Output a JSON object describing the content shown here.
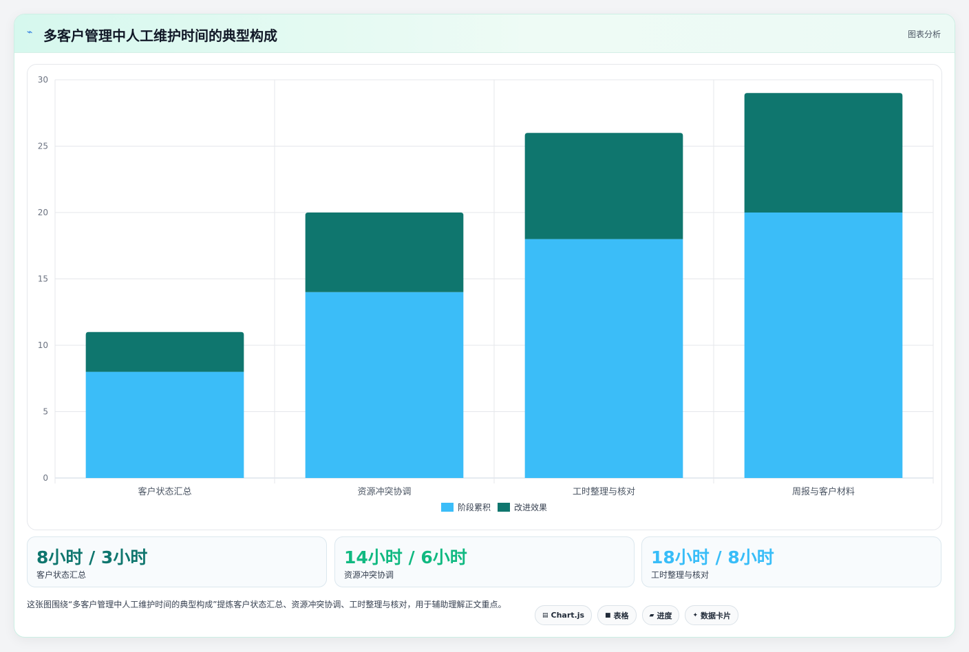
{
  "header": {
    "title": "多客户管理中人工维护时间的典型构成",
    "tag": "图表分析"
  },
  "chart_data": {
    "type": "bar",
    "stacked": true,
    "categories": [
      "客户状态汇总",
      "资源冲突协调",
      "工时整理与核对",
      "周报与客户材料"
    ],
    "series": [
      {
        "name": "阶段累积",
        "values": [
          8,
          14,
          18,
          20
        ],
        "color": "#3bbdf8"
      },
      {
        "name": "改进效果",
        "values": [
          3,
          6,
          8,
          9
        ],
        "color": "#0f766e"
      }
    ],
    "ylim": [
      0,
      30
    ],
    "yticks": [
      0,
      5,
      10,
      15,
      20,
      25,
      30
    ],
    "grid": true,
    "legend": "bottom"
  },
  "stats": [
    {
      "value": "8小时 / 3小时",
      "label": "客户状态汇总",
      "color": "#0f766e"
    },
    {
      "value": "14小时 / 6小时",
      "label": "资源冲突协调",
      "color": "#10b981"
    },
    {
      "value": "18小时 / 8小时",
      "label": "工时整理与核对",
      "color": "#38bdf8"
    }
  ],
  "description": "这张图围绕“多客户管理中人工维护时间的典型构成”提炼客户状态汇总、资源冲突协调、工时整理与核对，用于辅助理解正文重点。",
  "pills": [
    {
      "icon": "▤",
      "label": "Chart.js"
    },
    {
      "icon": "■",
      "label": "表格"
    },
    {
      "icon": "▰",
      "label": "进度"
    },
    {
      "icon": "✦",
      "label": "数据卡片"
    }
  ]
}
